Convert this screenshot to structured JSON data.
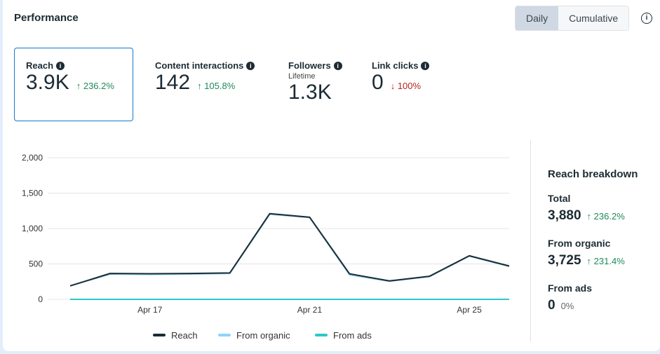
{
  "header": {
    "title": "Performance",
    "toggle": [
      "Daily",
      "Cumulative"
    ],
    "active": "Daily",
    "info_icon": "info-circle-icon"
  },
  "metrics": [
    {
      "label": "Reach",
      "value": "3.9K",
      "change": "236.2%",
      "direction": "up",
      "selected": true
    },
    {
      "label": "Content interactions",
      "value": "142",
      "change": "105.8%",
      "direction": "up"
    },
    {
      "label": "Followers",
      "sublabel": "Lifetime",
      "value": "1.3K"
    },
    {
      "label": "Link clicks",
      "value": "0",
      "change": "100%",
      "direction": "down"
    }
  ],
  "breakdown": {
    "title": "Reach breakdown",
    "items": [
      {
        "label": "Total",
        "value": "3,880",
        "change": "236.2%",
        "direction": "up"
      },
      {
        "label": "From organic",
        "value": "3,725",
        "change": "231.4%",
        "direction": "up"
      },
      {
        "label": "From ads",
        "value": "0",
        "change": "0%",
        "direction": "none"
      }
    ]
  },
  "colors": {
    "reach": "#1c2b33",
    "organic": "#8fd3fb",
    "ads": "#2ec7c9",
    "up": "#1f8a5c",
    "down": "#b3261e",
    "accent": "#1877c9"
  },
  "chart_data": {
    "type": "line",
    "x": [
      "Apr 15",
      "Apr 16",
      "Apr 17",
      "Apr 18",
      "Apr 19",
      "Apr 20",
      "Apr 21",
      "Apr 22",
      "Apr 23",
      "Apr 24",
      "Apr 25",
      "Apr 26"
    ],
    "x_tick_labels": [
      "Apr 17",
      "Apr 21",
      "Apr 25"
    ],
    "y_ticks": [
      "0",
      "500",
      "1,000",
      "1,500",
      "2,000"
    ],
    "ylim": [
      0,
      2000
    ],
    "grid": true,
    "legend_position": "bottom",
    "series": [
      {
        "name": "Reach",
        "values": [
          190,
          365,
          362,
          365,
          372,
          1210,
          1160,
          360,
          260,
          325,
          615,
          470
        ]
      },
      {
        "name": "From organic",
        "values": [
          190,
          355,
          350,
          355,
          365,
          1200,
          1155,
          345,
          255,
          320,
          610,
          465
        ]
      },
      {
        "name": "From ads",
        "values": [
          0,
          0,
          0,
          0,
          0,
          0,
          0,
          0,
          0,
          0,
          0,
          0
        ]
      }
    ]
  }
}
